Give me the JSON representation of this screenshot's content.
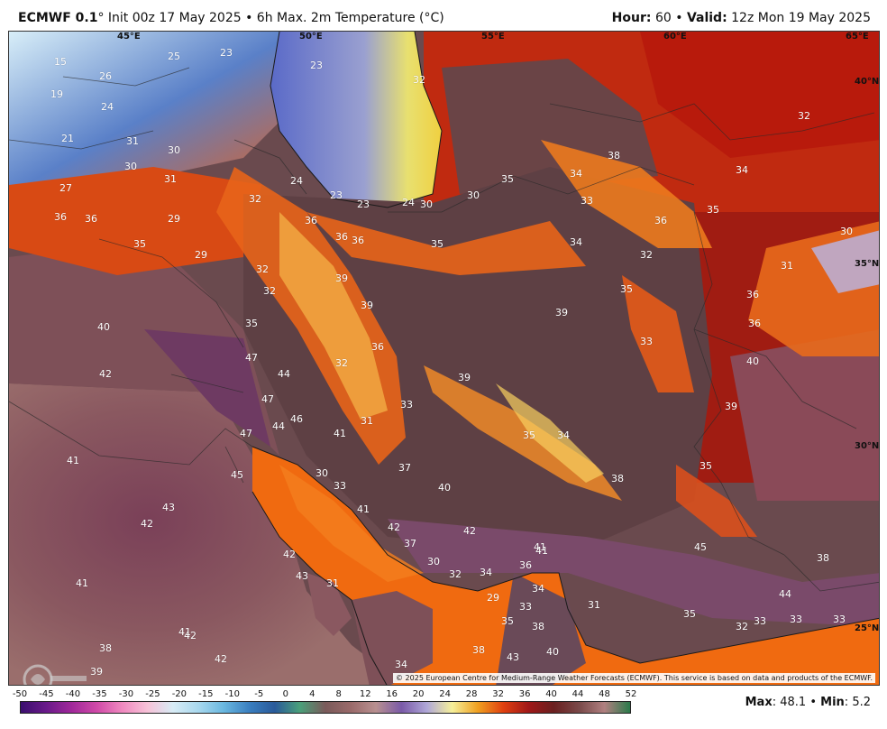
{
  "header": {
    "model": "ECMWF 0.1",
    "deg": "°",
    "init": "Init 00z 17 May 2025",
    "product": "• 6h Max. 2m Temperature (°C)",
    "hour_label": "Hour:",
    "hour_value": "60",
    "sep": "•",
    "valid_label": "Valid:",
    "valid_value": "12z Mon 19 May 2025"
  },
  "coords": {
    "lon45": "45°E",
    "lon50": "50°E",
    "lon55": "55°E",
    "lon60": "60°E",
    "lon65": "65°E",
    "lat40": "40°N",
    "lat35": "35°N",
    "lat30": "30°N",
    "lat25": "25°N"
  },
  "values": [
    {
      "t": "15"
    },
    {
      "t": "19"
    },
    {
      "t": "21"
    },
    {
      "t": "24"
    },
    {
      "t": "26"
    },
    {
      "t": "25"
    },
    {
      "t": "23"
    },
    {
      "t": "23"
    },
    {
      "t": "32"
    },
    {
      "t": "31"
    },
    {
      "t": "30"
    },
    {
      "t": "30"
    },
    {
      "t": "31"
    },
    {
      "t": "27"
    },
    {
      "t": "36"
    },
    {
      "t": "36"
    },
    {
      "t": "29"
    },
    {
      "t": "35"
    },
    {
      "t": "29"
    },
    {
      "t": "32"
    },
    {
      "t": "32"
    },
    {
      "t": "32"
    },
    {
      "t": "24"
    },
    {
      "t": "23"
    },
    {
      "t": "23"
    },
    {
      "t": "24"
    },
    {
      "t": "30"
    },
    {
      "t": "30"
    },
    {
      "t": "36"
    },
    {
      "t": "36"
    },
    {
      "t": "36"
    },
    {
      "t": "35"
    },
    {
      "t": "35"
    },
    {
      "t": "34"
    },
    {
      "t": "38"
    },
    {
      "t": "34"
    },
    {
      "t": "33"
    },
    {
      "t": "34"
    },
    {
      "t": "36"
    },
    {
      "t": "32"
    },
    {
      "t": "35"
    },
    {
      "t": "32"
    },
    {
      "t": "30"
    },
    {
      "t": "31"
    },
    {
      "t": "36"
    },
    {
      "t": "36"
    },
    {
      "t": "39"
    },
    {
      "t": "39"
    },
    {
      "t": "36"
    },
    {
      "t": "35"
    },
    {
      "t": "35"
    },
    {
      "t": "39"
    },
    {
      "t": "33"
    },
    {
      "t": "40"
    },
    {
      "t": "39"
    },
    {
      "t": "40"
    },
    {
      "t": "42"
    },
    {
      "t": "47"
    },
    {
      "t": "44"
    },
    {
      "t": "47"
    },
    {
      "t": "44"
    },
    {
      "t": "46"
    },
    {
      "t": "47"
    },
    {
      "t": "32"
    },
    {
      "t": "39"
    },
    {
      "t": "33"
    },
    {
      "t": "31"
    },
    {
      "t": "41"
    },
    {
      "t": "35"
    },
    {
      "t": "34"
    },
    {
      "t": "38"
    },
    {
      "t": "35"
    },
    {
      "t": "41"
    },
    {
      "t": "45"
    },
    {
      "t": "30"
    },
    {
      "t": "33"
    },
    {
      "t": "37"
    },
    {
      "t": "40"
    },
    {
      "t": "43"
    },
    {
      "t": "42"
    },
    {
      "t": "42"
    },
    {
      "t": "42"
    },
    {
      "t": "37"
    },
    {
      "t": "45"
    },
    {
      "t": "38"
    },
    {
      "t": "41"
    },
    {
      "t": "42"
    },
    {
      "t": "43"
    },
    {
      "t": "31"
    },
    {
      "t": "30"
    },
    {
      "t": "32"
    },
    {
      "t": "34"
    },
    {
      "t": "36"
    },
    {
      "t": "29"
    },
    {
      "t": "34"
    },
    {
      "t": "33"
    },
    {
      "t": "31"
    },
    {
      "t": "35"
    },
    {
      "t": "38"
    },
    {
      "t": "44"
    },
    {
      "t": "35"
    },
    {
      "t": "32"
    },
    {
      "t": "33"
    },
    {
      "t": "33"
    },
    {
      "t": "33"
    },
    {
      "t": "38"
    },
    {
      "t": "43"
    },
    {
      "t": "40"
    },
    {
      "t": "34"
    },
    {
      "t": "41"
    },
    {
      "t": "41"
    },
    {
      "t": "41"
    },
    {
      "t": "39"
    },
    {
      "t": "38"
    },
    {
      "t": "42"
    },
    {
      "t": "41"
    },
    {
      "t": "42"
    }
  ],
  "copyright": "© 2025 European Centre for Medium-Range Weather Forecasts (ECMWF). This service is based on data and products of the ECMWF.",
  "colorbar": {
    "ticks": [
      "-50",
      "-45",
      "-40",
      "-35",
      "-30",
      "-25",
      "-20",
      "-15",
      "-10",
      "-5",
      "0",
      "4",
      "8",
      "12",
      "16",
      "20",
      "24",
      "28",
      "32",
      "36",
      "40",
      "44",
      "48",
      "52"
    ],
    "stops": [
      "#3a0f6e",
      "#6a1a8a",
      "#a0289a",
      "#d04aa8",
      "#f08ac0",
      "#f7c2d8",
      "#d8ecf6",
      "#a8d8ee",
      "#6ab8e0",
      "#3a7fc0",
      "#2a5a9a",
      "#4aa07a",
      "#7a5a5a",
      "#9a6a6a",
      "#b89090",
      "#7a5aa8",
      "#b0a8d8",
      "#f6f09a",
      "#f0a020",
      "#e04010",
      "#a01818",
      "#6a2020",
      "#7a4a4a",
      "#b08080",
      "#2a7a4a"
    ]
  },
  "stats": {
    "max_label": "Max",
    "max_value": "48.1",
    "min_label": "Min",
    "min_value": "5.2",
    "sep": "•"
  }
}
